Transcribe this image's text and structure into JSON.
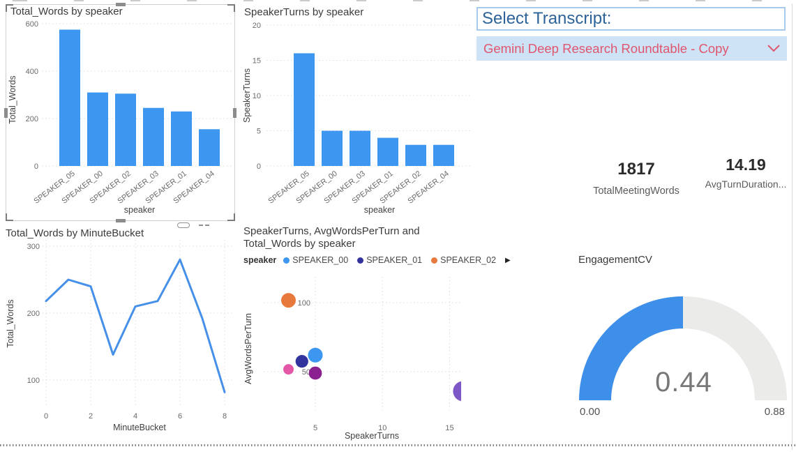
{
  "slicer": {
    "title": "Select Transcript:",
    "selected_option": "Gemini Deep Research Roundtable - Copy"
  },
  "cards": [
    {
      "value": "1817",
      "label": "TotalMeetingWords"
    },
    {
      "value": "14.19",
      "label": "AvgTurnDuration..."
    }
  ],
  "colors": {
    "bar_blue": "#3d97f1",
    "line_blue": "#4690e9",
    "gauge_blue": "#3e8fea",
    "gauge_track": "#ebebe9",
    "grid_gray": "#dcdcdc",
    "dropdown_text": "#e0566f"
  },
  "chart_data": [
    {
      "id": "total_words_by_speaker",
      "type": "bar",
      "title": "Total_Words by speaker",
      "xlabel": "speaker",
      "ylabel": "Total_Words",
      "categories": [
        "SPEAKER_05",
        "SPEAKER_00",
        "SPEAKER_02",
        "SPEAKER_03",
        "SPEAKER_01",
        "SPEAKER_04"
      ],
      "values": [
        575,
        310,
        305,
        245,
        230,
        155
      ],
      "ylim": [
        0,
        600
      ],
      "yticks": [
        0,
        200,
        400,
        600
      ],
      "grid": true
    },
    {
      "id": "speaker_turns_by_speaker",
      "type": "bar",
      "title": "SpeakerTurns by speaker",
      "xlabel": "speaker",
      "ylabel": "SpeakerTurns",
      "categories": [
        "SPEAKER_05",
        "SPEAKER_00",
        "SPEAKER_03",
        "SPEAKER_01",
        "SPEAKER_02",
        "SPEAKER_04"
      ],
      "values": [
        16,
        5,
        5,
        4,
        3,
        3
      ],
      "ylim": [
        0,
        20
      ],
      "yticks": [
        0,
        5,
        10,
        15,
        20
      ],
      "grid": true
    },
    {
      "id": "total_words_by_minutebucket",
      "type": "line",
      "title": "Total_Words by MinuteBucket",
      "xlabel": "MinuteBucket",
      "ylabel": "Total_Words",
      "x": [
        0,
        1,
        2,
        3,
        4,
        5,
        6,
        7,
        8
      ],
      "y": [
        218,
        250,
        240,
        138,
        210,
        218,
        280,
        192,
        82
      ],
      "xticks": [
        0,
        2,
        4,
        6,
        8
      ],
      "yticks": [
        100,
        200,
        300
      ],
      "ylim": [
        50,
        300
      ],
      "grid": true
    },
    {
      "id": "turns_words_scatter",
      "type": "scatter",
      "title": "SpeakerTurns, AvgWordsPerTurn and Total_Words by speaker",
      "xlabel": "SpeakerTurns",
      "ylabel": "AvgWordsPerTurn",
      "legend_title": "speaker",
      "legend_visible_items": [
        "SPEAKER_00",
        "SPEAKER_01",
        "SPEAKER_02"
      ],
      "xticks": [
        5,
        10,
        15
      ],
      "yticks": [
        50,
        100
      ],
      "series": [
        {
          "name": "SPEAKER_00",
          "color": "#3d97f1",
          "x": 5,
          "y": 62,
          "size": 310
        },
        {
          "name": "SPEAKER_01",
          "color": "#33339e",
          "x": 4,
          "y": 57.5,
          "size": 230
        },
        {
          "name": "SPEAKER_02",
          "color": "#e8793c",
          "x": 3,
          "y": 101.7,
          "size": 305
        },
        {
          "name": "SPEAKER_03",
          "color": "#8b2090",
          "x": 5,
          "y": 49,
          "size": 245
        },
        {
          "name": "SPEAKER_04",
          "color": "#e457a8",
          "x": 3,
          "y": 51.7,
          "size": 155
        },
        {
          "name": "SPEAKER_05",
          "color": "#7e57c7",
          "x": 16,
          "y": 35.9,
          "size": 575
        }
      ]
    },
    {
      "id": "engagement_cv",
      "type": "gauge",
      "title": "EngagementCV",
      "value": 0.44,
      "value_label": "0.44",
      "min": 0,
      "max": 0.88,
      "min_label": "0.00",
      "max_label": "0.88"
    }
  ]
}
